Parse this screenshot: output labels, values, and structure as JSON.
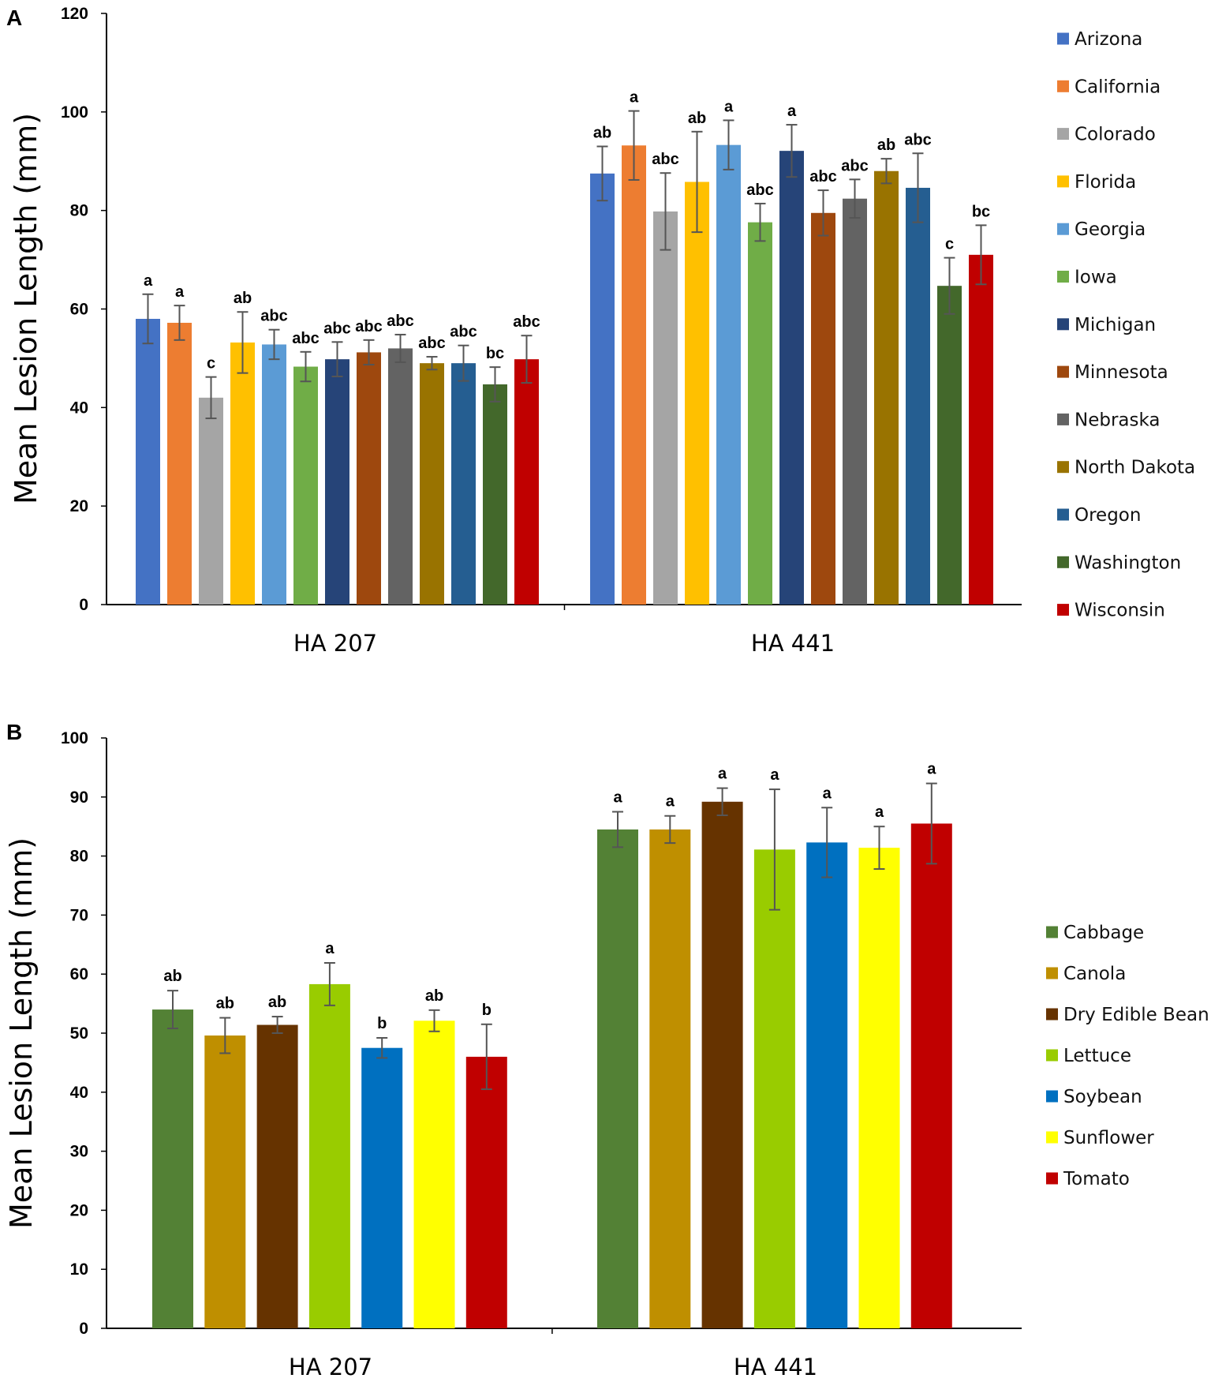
{
  "chart_data": [
    {
      "type": "bar",
      "panel_label": "A",
      "title": "",
      "xlabel": "",
      "ylabel": "Mean Lesion Length (mm)",
      "ylim": [
        0,
        120
      ],
      "yticks": [
        0,
        20,
        40,
        60,
        80,
        100,
        120
      ],
      "grid": false,
      "legend_position": "right",
      "categories": [
        "HA 207",
        "HA 441"
      ],
      "series": [
        {
          "name": "Arizona",
          "color": "#4472C4",
          "values": [
            58,
            87.5
          ],
          "errors": [
            5,
            5.5
          ],
          "letters": [
            "a",
            "ab"
          ]
        },
        {
          "name": "California",
          "color": "#ED7D31",
          "values": [
            57.2,
            93.2
          ],
          "errors": [
            3.5,
            7
          ],
          "letters": [
            "a",
            "a"
          ]
        },
        {
          "name": "Colorado",
          "color": "#A5A5A5",
          "values": [
            42,
            79.8
          ],
          "errors": [
            4.2,
            7.8
          ],
          "letters": [
            "c",
            "abc"
          ]
        },
        {
          "name": "Florida",
          "color": "#FFC000",
          "values": [
            53.2,
            85.8
          ],
          "errors": [
            6.2,
            10.2
          ],
          "letters": [
            "ab",
            "ab"
          ]
        },
        {
          "name": "Georgia",
          "color": "#5B9BD5",
          "values": [
            52.8,
            93.3
          ],
          "errors": [
            3,
            5
          ],
          "letters": [
            "abc",
            "a"
          ]
        },
        {
          "name": "Iowa",
          "color": "#70AD47",
          "values": [
            48.3,
            77.6
          ],
          "errors": [
            3,
            3.8
          ],
          "letters": [
            "abc",
            "abc"
          ]
        },
        {
          "name": "Michigan",
          "color": "#264478",
          "values": [
            49.8,
            92.1
          ],
          "errors": [
            3.5,
            5.3
          ],
          "letters": [
            "abc",
            "a"
          ]
        },
        {
          "name": "Minnesota",
          "color": "#9E480E",
          "values": [
            51.2,
            79.5
          ],
          "errors": [
            2.5,
            4.6
          ],
          "letters": [
            "abc",
            "abc"
          ]
        },
        {
          "name": "Nebraska",
          "color": "#636363",
          "values": [
            52,
            82.4
          ],
          "errors": [
            2.8,
            3.9
          ],
          "letters": [
            "abc",
            "abc"
          ]
        },
        {
          "name": "North Dakota",
          "color": "#997300",
          "values": [
            49,
            88
          ],
          "errors": [
            1.3,
            2.5
          ],
          "letters": [
            "abc",
            "ab"
          ]
        },
        {
          "name": "Oregon",
          "color": "#255E91",
          "values": [
            49,
            84.6
          ],
          "errors": [
            3.6,
            7
          ],
          "letters": [
            "abc",
            "abc"
          ]
        },
        {
          "name": "Washington",
          "color": "#43682B",
          "values": [
            44.7,
            64.7
          ],
          "errors": [
            3.5,
            5.7
          ],
          "letters": [
            "bc",
            "c"
          ]
        },
        {
          "name": "Wisconsin",
          "color": "#C00000",
          "values": [
            49.8,
            71
          ],
          "errors": [
            4.8,
            6
          ],
          "letters": [
            "abc",
            "bc"
          ]
        }
      ]
    },
    {
      "type": "bar",
      "panel_label": "B",
      "title": "",
      "xlabel": "",
      "ylabel": "Mean Lesion Length (mm)",
      "ylim": [
        0,
        100
      ],
      "yticks": [
        0,
        10,
        20,
        30,
        40,
        50,
        60,
        70,
        80,
        90,
        100
      ],
      "grid": false,
      "legend_position": "right",
      "categories": [
        "HA 207",
        "HA 441"
      ],
      "series": [
        {
          "name": "Cabbage",
          "color": "#538135",
          "values": [
            54,
            84.5
          ],
          "errors": [
            3.2,
            3
          ],
          "letters": [
            "ab",
            "a"
          ]
        },
        {
          "name": "Canola",
          "color": "#BF8F00",
          "values": [
            49.6,
            84.5
          ],
          "errors": [
            3,
            2.3
          ],
          "letters": [
            "ab",
            "a"
          ]
        },
        {
          "name": "Dry Edible Bean",
          "color": "#663300",
          "values": [
            51.4,
            89.2
          ],
          "errors": [
            1.4,
            2.3
          ],
          "letters": [
            "ab",
            "a"
          ]
        },
        {
          "name": "Lettuce",
          "color": "#99CC00",
          "values": [
            58.3,
            81.1
          ],
          "errors": [
            3.6,
            10.2
          ],
          "letters": [
            "a",
            "a"
          ]
        },
        {
          "name": "Soybean",
          "color": "#0070C0",
          "values": [
            47.5,
            82.3
          ],
          "errors": [
            1.7,
            5.9
          ],
          "letters": [
            "b",
            "a"
          ]
        },
        {
          "name": "Sunflower",
          "color": "#FFFF00",
          "values": [
            52.1,
            81.4
          ],
          "errors": [
            1.8,
            3.6
          ],
          "letters": [
            "ab",
            "a"
          ]
        },
        {
          "name": "Tomato",
          "color": "#C00000",
          "values": [
            46,
            85.5
          ],
          "errors": [
            5.5,
            6.8
          ],
          "letters": [
            "b",
            "a"
          ]
        }
      ]
    }
  ]
}
